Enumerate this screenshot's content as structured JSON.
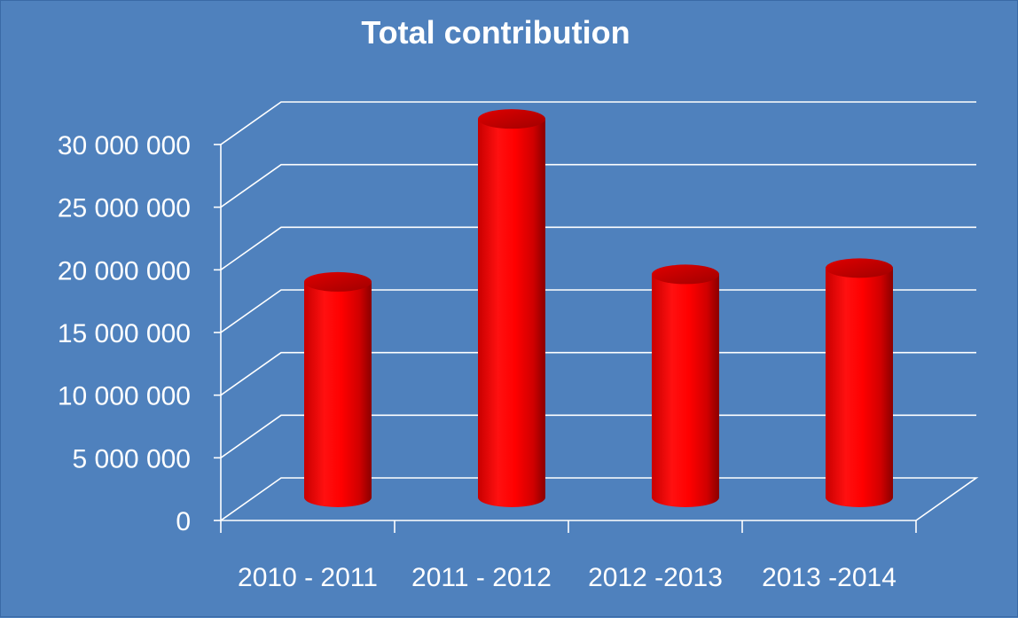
{
  "chart_data": {
    "type": "bar",
    "style": "3d-cylinder",
    "title": "Total contribution",
    "xlabel": "",
    "ylabel": "",
    "categories": [
      "2010 - 2011",
      "2011 - 2012",
      "2012 -2013",
      "2013 -2014"
    ],
    "values": [
      17200000,
      30200000,
      17800000,
      18300000
    ],
    "ylim": [
      0,
      30000000
    ],
    "yticks": [
      0,
      5000000,
      10000000,
      15000000,
      20000000,
      25000000,
      30000000
    ],
    "ytick_labels": [
      "0",
      "5 000 000",
      "10 000 000",
      "15 000 000",
      "20 000 000",
      "25 000 000",
      "30 000 000"
    ],
    "grid": true,
    "legend": "none"
  },
  "colors": {
    "background": "#4f81bd",
    "bar": "#ff0000",
    "bar_dark": "#9a0000",
    "text": "#ffffff",
    "grid": "#ffffff"
  }
}
